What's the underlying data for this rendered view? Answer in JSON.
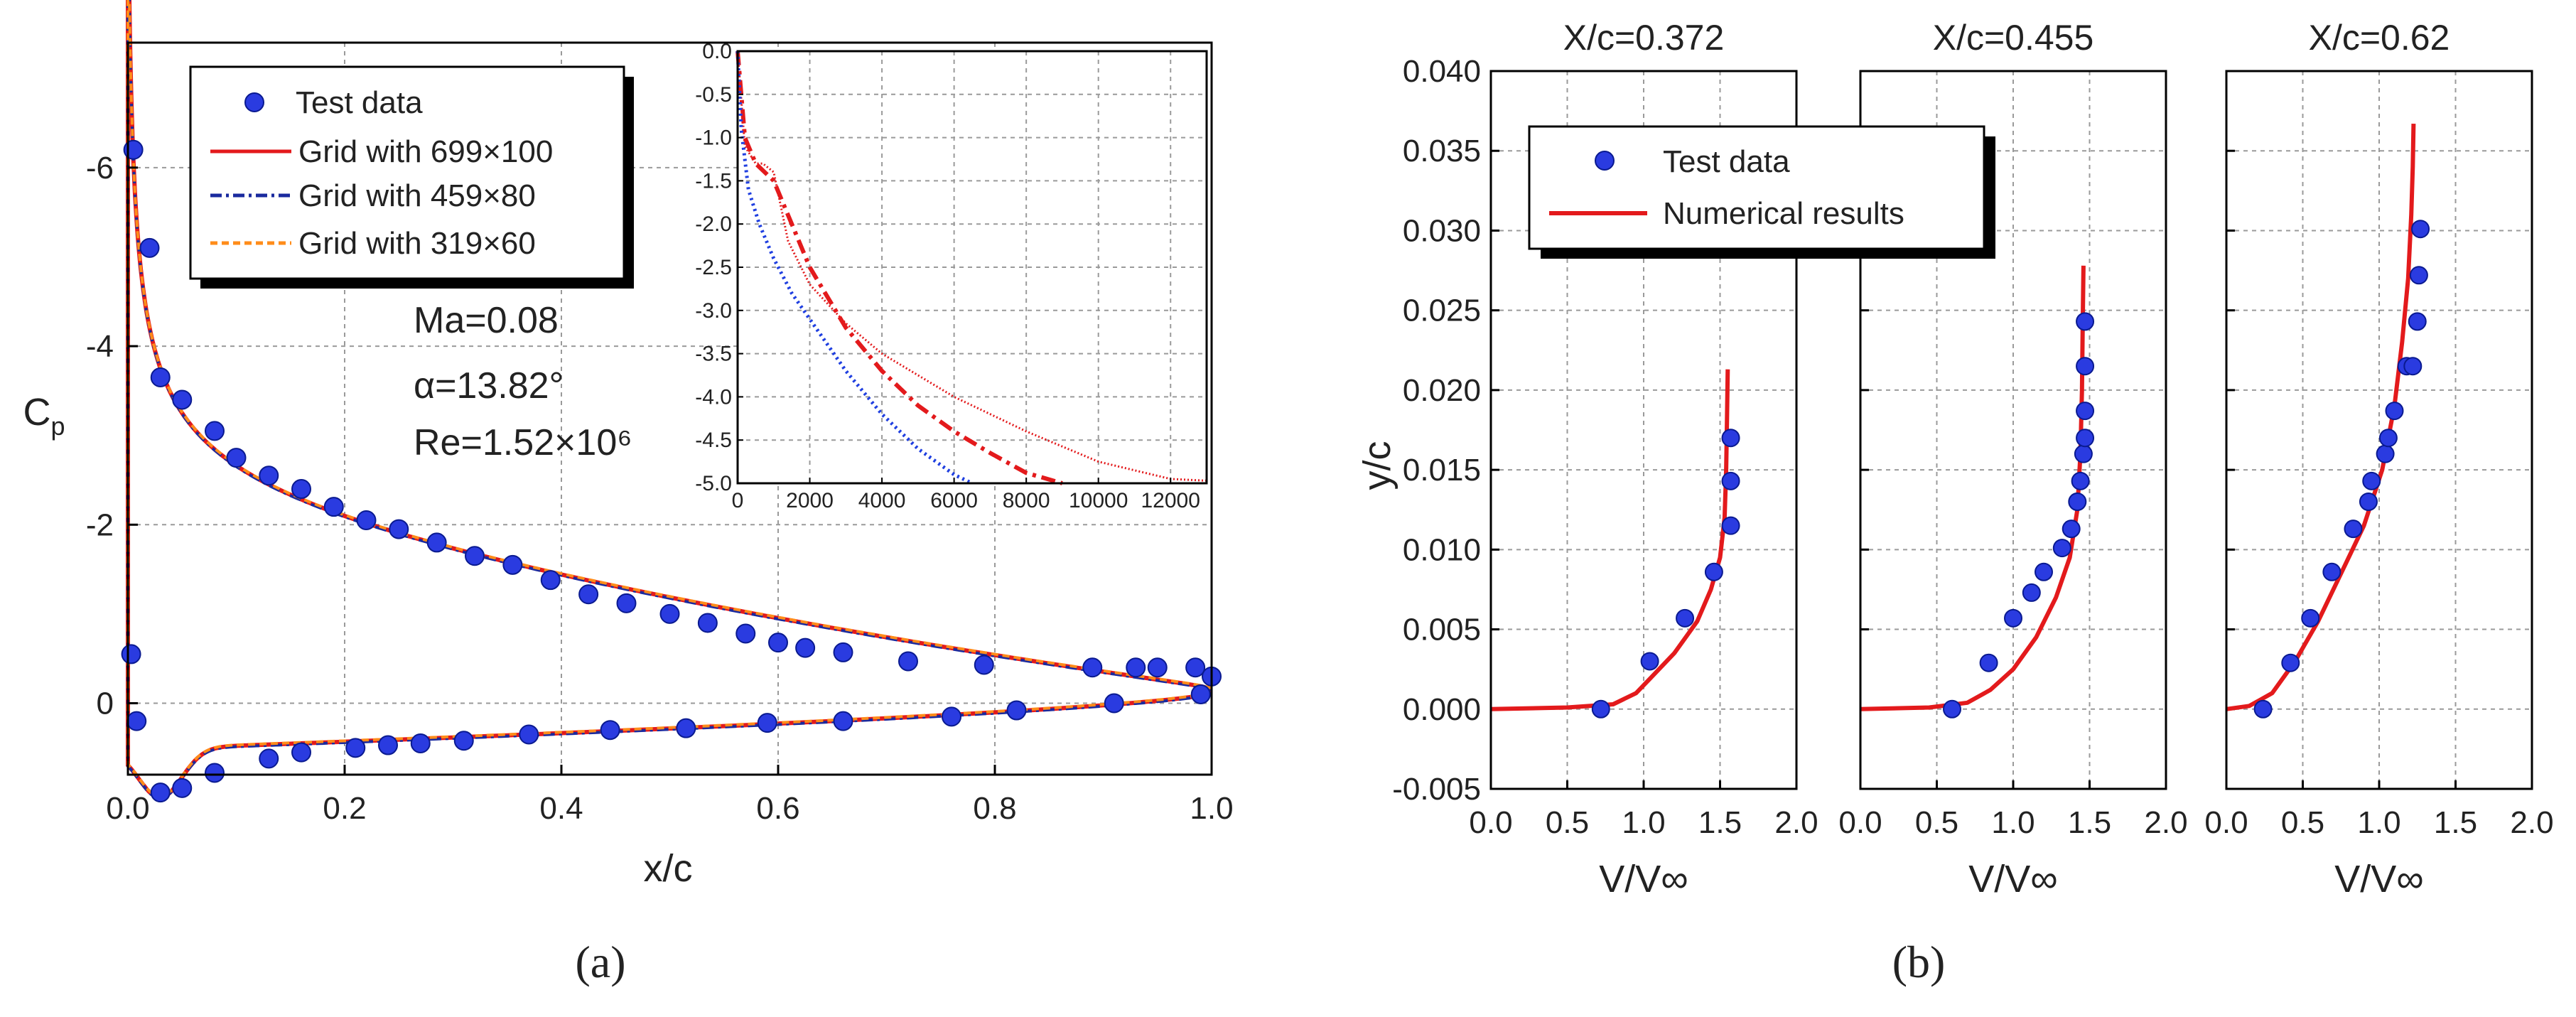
{
  "panel_a": {
    "panel_label": "(a)",
    "annotation": {
      "mach": "Ma=0.08",
      "alpha": "α=13.82°",
      "re": "Re=1.52×10⁶"
    },
    "legend": [
      "Test data",
      "Grid with 699×100",
      "Grid with 459×80",
      "Grid with 319×60"
    ]
  },
  "panel_b": {
    "panel_label": "(b)",
    "legend": [
      "Test data",
      "Numerical results"
    ]
  },
  "colors": {
    "test": "#2a3be0",
    "fine": "#e31a1c",
    "medium": "#1a2a9e",
    "coarse": "#ff8c1a",
    "inset_blue": "#1f3fe0"
  },
  "chart_data": [
    {
      "type": "line",
      "title": "",
      "xlabel": "x/c",
      "ylabel": "Cp",
      "xlim": [
        0.0,
        1.0
      ],
      "ylim": [
        0.8,
        -7.4
      ],
      "xticks": [
        "0.0",
        "0.2",
        "0.4",
        "0.6",
        "0.8",
        "1.0"
      ],
      "yticks": [
        "-6",
        "-4",
        "-2",
        "0"
      ],
      "test_data": {
        "x": [
          0.005,
          0.02,
          0.03,
          0.05,
          0.08,
          0.1,
          0.13,
          0.16,
          0.19,
          0.22,
          0.25,
          0.285,
          0.32,
          0.355,
          0.39,
          0.425,
          0.46,
          0.5,
          0.535,
          0.57,
          0.6,
          0.625,
          0.66,
          0.72,
          0.79,
          0.89,
          0.93,
          0.95,
          0.985,
          1.0,
          0.003,
          0.008,
          0.03,
          0.05,
          0.08,
          0.13,
          0.16,
          0.21,
          0.24,
          0.27,
          0.31,
          0.37,
          0.445,
          0.515,
          0.59,
          0.66,
          0.76,
          0.82,
          0.91,
          0.99
        ],
        "y": [
          -6.2,
          -5.1,
          -3.65,
          -3.4,
          -3.05,
          -2.75,
          -2.55,
          -2.4,
          -2.2,
          -2.05,
          -1.95,
          -1.8,
          -1.65,
          -1.55,
          -1.38,
          -1.22,
          -1.12,
          -1.0,
          -0.9,
          -0.78,
          -0.68,
          -0.62,
          -0.57,
          -0.47,
          -0.43,
          -0.4,
          -0.4,
          -0.4,
          -0.4,
          -0.3,
          -0.55,
          0.2,
          1.0,
          0.95,
          0.78,
          0.62,
          0.55,
          0.5,
          0.47,
          0.45,
          0.42,
          0.35,
          0.3,
          0.28,
          0.22,
          0.2,
          0.15,
          0.08,
          0.0,
          -0.1
        ]
      },
      "series": [
        {
          "name": "Grid with 699×100",
          "curve": "upper_lower"
        },
        {
          "name": "Grid with 459×80",
          "curve": "upper_lower"
        },
        {
          "name": "Grid with 319×60",
          "curve": "upper_lower"
        }
      ]
    },
    {
      "type": "line",
      "title": "inset",
      "xlim": [
        0,
        13000
      ],
      "ylim": [
        0.0,
        -5.0
      ],
      "xticks": [
        "0",
        "2000",
        "4000",
        "6000",
        "8000",
        "10000",
        "12000"
      ],
      "yticks": [
        "0.0",
        "-0.5",
        "-1.0",
        "-1.5",
        "-2.0",
        "-2.5",
        "-3.0",
        "-3.5",
        "-4.0",
        "-4.5",
        "-5.0"
      ],
      "series": [
        {
          "name": "Grid with 699×100",
          "x": [
            0,
            200,
            500,
            700,
            1000,
            1400,
            2000,
            3000,
            4000,
            6000,
            8000,
            10000,
            12000,
            13000
          ],
          "y": [
            0.0,
            -1.1,
            -1.3,
            -1.3,
            -1.4,
            -2.2,
            -2.7,
            -3.15,
            -3.5,
            -4.0,
            -4.4,
            -4.75,
            -4.95,
            -4.97
          ]
        },
        {
          "name": "Grid with 459×80",
          "x": [
            0,
            200,
            500,
            1000,
            1500,
            2000,
            3000,
            4000,
            5000,
            6000,
            7000,
            8000,
            9000
          ],
          "y": [
            0.0,
            -1.0,
            -1.3,
            -1.5,
            -2.0,
            -2.5,
            -3.2,
            -3.7,
            -4.1,
            -4.4,
            -4.65,
            -4.88,
            -5.0
          ]
        },
        {
          "name": "Grid with 319×60",
          "x": [
            0,
            100,
            300,
            600,
            1000,
            1500,
            2000,
            3000,
            4000,
            5000,
            6000,
            6500
          ],
          "y": [
            0.0,
            -0.9,
            -1.6,
            -2.0,
            -2.4,
            -2.8,
            -3.1,
            -3.7,
            -4.2,
            -4.6,
            -4.9,
            -5.0
          ]
        }
      ]
    },
    {
      "type": "line",
      "title": "X/c=0.372",
      "xlabel": "V/V∞",
      "ylabel": "y/c",
      "xlim": [
        0.0,
        2.0
      ],
      "ylim": [
        -0.005,
        0.04
      ],
      "xticks": [
        "0.0",
        "0.5",
        "1.0",
        "1.5",
        "2.0"
      ],
      "yticks": [
        "-0.005",
        "0.000",
        "0.005",
        "0.010",
        "0.015",
        "0.020",
        "0.025",
        "0.030",
        "0.035",
        "0.040"
      ],
      "test_data": {
        "x": [
          0.72,
          1.04,
          1.27,
          1.46,
          1.57,
          1.57,
          1.57
        ],
        "y": [
          0.0,
          0.003,
          0.0057,
          0.0086,
          0.0115,
          0.0143,
          0.017
        ]
      },
      "series": [
        {
          "name": "Numerical results",
          "x": [
            0.0,
            0.5,
            0.8,
            0.95,
            1.05,
            1.2,
            1.35,
            1.44,
            1.5,
            1.53,
            1.54,
            1.545,
            1.55
          ],
          "y": [
            0.0,
            0.0001,
            0.0003,
            0.001,
            0.002,
            0.0035,
            0.0055,
            0.0075,
            0.0095,
            0.012,
            0.015,
            0.018,
            0.0213
          ]
        }
      ]
    },
    {
      "type": "line",
      "title": "X/c=0.455",
      "xlabel": "V/V∞",
      "xlim": [
        0.0,
        2.0
      ],
      "ylim": [
        -0.005,
        0.04
      ],
      "xticks": [
        "0.0",
        "0.5",
        "1.0",
        "1.5",
        "2.0"
      ],
      "test_data": {
        "x": [
          0.6,
          0.84,
          1.0,
          1.12,
          1.2,
          1.32,
          1.38,
          1.42,
          1.44,
          1.46,
          1.47,
          1.47,
          1.47,
          1.47
        ],
        "y": [
          0.0,
          0.0029,
          0.0057,
          0.0073,
          0.0086,
          0.0101,
          0.0113,
          0.013,
          0.0143,
          0.016,
          0.017,
          0.0187,
          0.0215,
          0.0243
        ]
      },
      "series": [
        {
          "name": "Numerical results",
          "x": [
            0.0,
            0.45,
            0.7,
            0.85,
            1.0,
            1.15,
            1.28,
            1.37,
            1.42,
            1.44,
            1.45,
            1.455,
            1.46
          ],
          "y": [
            0.0,
            0.0001,
            0.0004,
            0.0012,
            0.0025,
            0.0045,
            0.007,
            0.0095,
            0.0125,
            0.016,
            0.02,
            0.024,
            0.0278
          ]
        }
      ]
    },
    {
      "type": "line",
      "title": "X/c=0.62",
      "xlabel": "V/V∞",
      "xlim": [
        0.0,
        2.0
      ],
      "ylim": [
        -0.005,
        0.04
      ],
      "xticks": [
        "0.0",
        "0.5",
        "1.0",
        "1.5",
        "2.0"
      ],
      "test_data": {
        "x": [
          0.24,
          0.42,
          0.55,
          0.69,
          0.83,
          0.93,
          0.95,
          1.04,
          1.06,
          1.1,
          1.18,
          1.22,
          1.25,
          1.26,
          1.27
        ],
        "y": [
          0.0,
          0.0029,
          0.0057,
          0.0086,
          0.0113,
          0.013,
          0.0143,
          0.016,
          0.017,
          0.0187,
          0.0215,
          0.0215,
          0.0243,
          0.0272,
          0.0301
        ]
      },
      "series": [
        {
          "name": "Numerical results",
          "x": [
            0.0,
            0.15,
            0.3,
            0.45,
            0.6,
            0.75,
            0.9,
            1.02,
            1.1,
            1.15,
            1.19,
            1.21,
            1.22,
            1.225
          ],
          "y": [
            0.0,
            0.0002,
            0.001,
            0.003,
            0.0055,
            0.0085,
            0.0115,
            0.015,
            0.019,
            0.023,
            0.027,
            0.031,
            0.034,
            0.0367
          ]
        }
      ]
    }
  ]
}
